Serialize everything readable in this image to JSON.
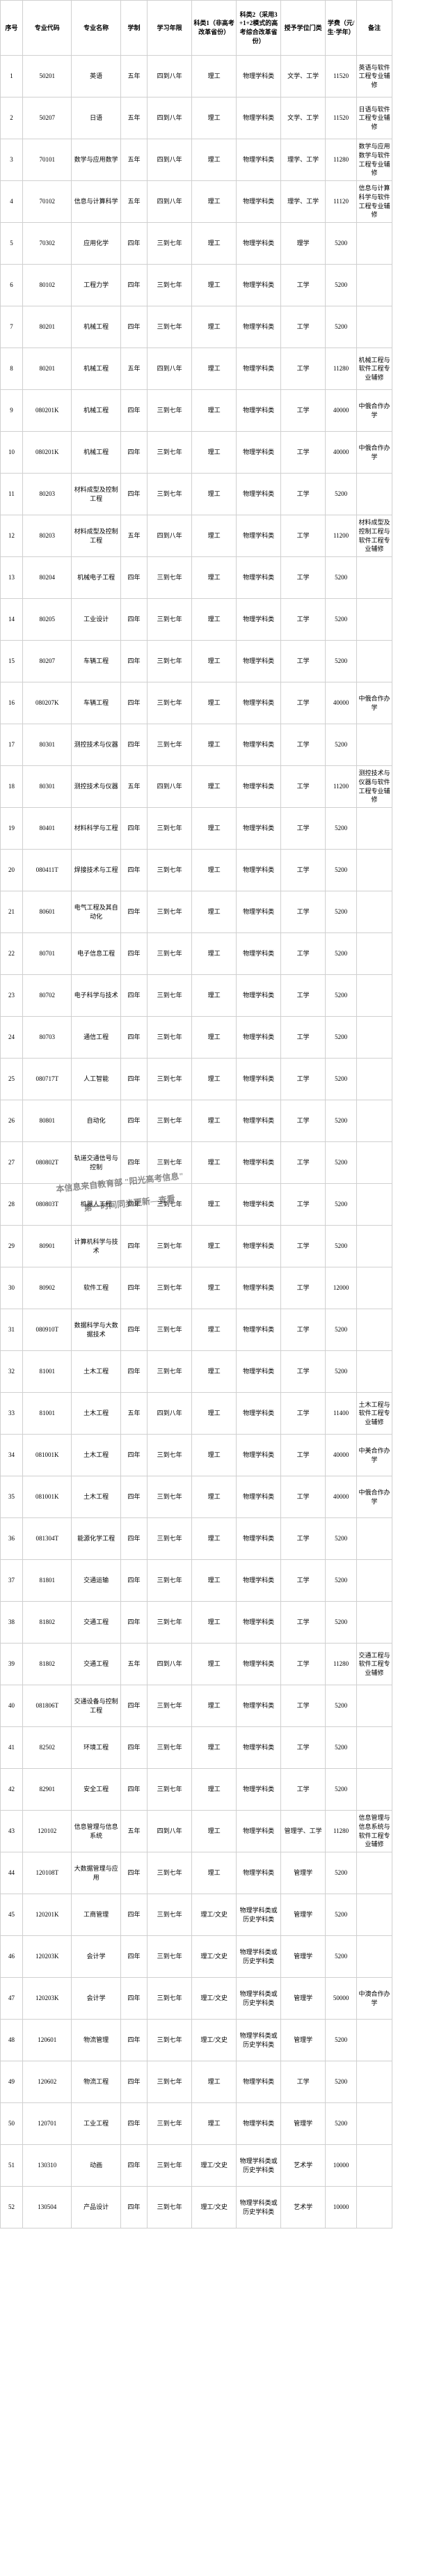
{
  "columns": [
    {
      "key": "idx",
      "label": "序号"
    },
    {
      "key": "code",
      "label": "专业代码"
    },
    {
      "key": "name",
      "label": "专业名称"
    },
    {
      "key": "sys",
      "label": "学制"
    },
    {
      "key": "years",
      "label": "学习年限"
    },
    {
      "key": "k1",
      "label": "科类1（非高考改革省份）"
    },
    {
      "key": "k2",
      "label": "科类2（采用3+1+2模式的高考综合改革省份）"
    },
    {
      "key": "degree",
      "label": "授予学位门类"
    },
    {
      "key": "fee",
      "label": "学费（元/生·学年）"
    },
    {
      "key": "note",
      "label": "备注"
    }
  ],
  "rows": [
    {
      "idx": "1",
      "code": "50201",
      "name": "英语",
      "sys": "五年",
      "years": "四到八年",
      "k1": "理工",
      "k2": "物理学科类",
      "degree": "文学、工学",
      "fee": "11520",
      "note": "英语与软件工程专业辅修"
    },
    {
      "idx": "2",
      "code": "50207",
      "name": "日语",
      "sys": "五年",
      "years": "四到八年",
      "k1": "理工",
      "k2": "物理学科类",
      "degree": "文学、工学",
      "fee": "11520",
      "note": "日语与软件工程专业辅修"
    },
    {
      "idx": "3",
      "code": "70101",
      "name": "数学与应用数学",
      "sys": "五年",
      "years": "四到八年",
      "k1": "理工",
      "k2": "物理学科类",
      "degree": "理学、工学",
      "fee": "11280",
      "note": "数学与应用数学与软件工程专业辅修"
    },
    {
      "idx": "4",
      "code": "70102",
      "name": "信息与计算科学",
      "sys": "五年",
      "years": "四到八年",
      "k1": "理工",
      "k2": "物理学科类",
      "degree": "理学、工学",
      "fee": "11120",
      "note": "信息与计算科学与软件工程专业辅修"
    },
    {
      "idx": "5",
      "code": "70302",
      "name": "应用化学",
      "sys": "四年",
      "years": "三到七年",
      "k1": "理工",
      "k2": "物理学科类",
      "degree": "理学",
      "fee": "5200",
      "note": ""
    },
    {
      "idx": "6",
      "code": "80102",
      "name": "工程力学",
      "sys": "四年",
      "years": "三到七年",
      "k1": "理工",
      "k2": "物理学科类",
      "degree": "工学",
      "fee": "5200",
      "note": ""
    },
    {
      "idx": "7",
      "code": "80201",
      "name": "机械工程",
      "sys": "四年",
      "years": "三到七年",
      "k1": "理工",
      "k2": "物理学科类",
      "degree": "工学",
      "fee": "5200",
      "note": ""
    },
    {
      "idx": "8",
      "code": "80201",
      "name": "机械工程",
      "sys": "五年",
      "years": "四到八年",
      "k1": "理工",
      "k2": "物理学科类",
      "degree": "工学",
      "fee": "11280",
      "note": "机械工程与软件工程专业辅修"
    },
    {
      "idx": "9",
      "code": "080201K",
      "name": "机械工程",
      "sys": "四年",
      "years": "三到七年",
      "k1": "理工",
      "k2": "物理学科类",
      "degree": "工学",
      "fee": "40000",
      "note": "中俄合作办学"
    },
    {
      "idx": "10",
      "code": "080201K",
      "name": "机械工程",
      "sys": "四年",
      "years": "三到七年",
      "k1": "理工",
      "k2": "物理学科类",
      "degree": "工学",
      "fee": "40000",
      "note": "中俄合作办学"
    },
    {
      "idx": "11",
      "code": "80203",
      "name": "材料成型及控制工程",
      "sys": "四年",
      "years": "三到七年",
      "k1": "理工",
      "k2": "物理学科类",
      "degree": "工学",
      "fee": "5200",
      "note": ""
    },
    {
      "idx": "12",
      "code": "80203",
      "name": "材料成型及控制工程",
      "sys": "五年",
      "years": "四到八年",
      "k1": "理工",
      "k2": "物理学科类",
      "degree": "工学",
      "fee": "11200",
      "note": "材料成型及控制工程与软件工程专业辅修"
    },
    {
      "idx": "13",
      "code": "80204",
      "name": "机械电子工程",
      "sys": "四年",
      "years": "三到七年",
      "k1": "理工",
      "k2": "物理学科类",
      "degree": "工学",
      "fee": "5200",
      "note": ""
    },
    {
      "idx": "14",
      "code": "80205",
      "name": "工业设计",
      "sys": "四年",
      "years": "三到七年",
      "k1": "理工",
      "k2": "物理学科类",
      "degree": "工学",
      "fee": "5200",
      "note": ""
    },
    {
      "idx": "15",
      "code": "80207",
      "name": "车辆工程",
      "sys": "四年",
      "years": "三到七年",
      "k1": "理工",
      "k2": "物理学科类",
      "degree": "工学",
      "fee": "5200",
      "note": ""
    },
    {
      "idx": "16",
      "code": "080207K",
      "name": "车辆工程",
      "sys": "四年",
      "years": "三到七年",
      "k1": "理工",
      "k2": "物理学科类",
      "degree": "工学",
      "fee": "40000",
      "note": "中俄合作办学"
    },
    {
      "idx": "17",
      "code": "80301",
      "name": "测控技术与仪器",
      "sys": "四年",
      "years": "三到七年",
      "k1": "理工",
      "k2": "物理学科类",
      "degree": "工学",
      "fee": "5200",
      "note": ""
    },
    {
      "idx": "18",
      "code": "80301",
      "name": "测控技术与仪器",
      "sys": "五年",
      "years": "四到八年",
      "k1": "理工",
      "k2": "物理学科类",
      "degree": "工学",
      "fee": "11200",
      "note": "测控技术与仪器与软件工程专业辅修"
    },
    {
      "idx": "19",
      "code": "80401",
      "name": "材料科学与工程",
      "sys": "四年",
      "years": "三到七年",
      "k1": "理工",
      "k2": "物理学科类",
      "degree": "工学",
      "fee": "5200",
      "note": ""
    },
    {
      "idx": "20",
      "code": "080411T",
      "name": "焊接技术与工程",
      "sys": "四年",
      "years": "三到七年",
      "k1": "理工",
      "k2": "物理学科类",
      "degree": "工学",
      "fee": "5200",
      "note": ""
    },
    {
      "idx": "21",
      "code": "80601",
      "name": "电气工程及其自动化",
      "sys": "四年",
      "years": "三到七年",
      "k1": "理工",
      "k2": "物理学科类",
      "degree": "工学",
      "fee": "5200",
      "note": ""
    },
    {
      "idx": "22",
      "code": "80701",
      "name": "电子信息工程",
      "sys": "四年",
      "years": "三到七年",
      "k1": "理工",
      "k2": "物理学科类",
      "degree": "工学",
      "fee": "5200",
      "note": ""
    },
    {
      "idx": "23",
      "code": "80702",
      "name": "电子科学与技术",
      "sys": "四年",
      "years": "三到七年",
      "k1": "理工",
      "k2": "物理学科类",
      "degree": "工学",
      "fee": "5200",
      "note": ""
    },
    {
      "idx": "24",
      "code": "80703",
      "name": "通信工程",
      "sys": "四年",
      "years": "三到七年",
      "k1": "理工",
      "k2": "物理学科类",
      "degree": "工学",
      "fee": "5200",
      "note": ""
    },
    {
      "idx": "25",
      "code": "080717T",
      "name": "人工智能",
      "sys": "四年",
      "years": "三到七年",
      "k1": "理工",
      "k2": "物理学科类",
      "degree": "工学",
      "fee": "5200",
      "note": ""
    },
    {
      "idx": "26",
      "code": "80801",
      "name": "自动化",
      "sys": "四年",
      "years": "三到七年",
      "k1": "理工",
      "k2": "物理学科类",
      "degree": "工学",
      "fee": "5200",
      "note": ""
    },
    {
      "idx": "27",
      "code": "080802T",
      "name": "轨道交通信号与控制",
      "sys": "四年",
      "years": "三到七年",
      "k1": "理工",
      "k2": "物理学科类",
      "degree": "工学",
      "fee": "5200",
      "note": ""
    },
    {
      "idx": "28",
      "code": "080803T",
      "name": "机器人工程",
      "sys": "四年",
      "years": "三到七年",
      "k1": "理工",
      "k2": "物理学科类",
      "degree": "工学",
      "fee": "5200",
      "note": ""
    },
    {
      "idx": "29",
      "code": "80901",
      "name": "计算机科学与技术",
      "sys": "四年",
      "years": "三到七年",
      "k1": "理工",
      "k2": "物理学科类",
      "degree": "工学",
      "fee": "5200",
      "note": ""
    },
    {
      "idx": "30",
      "code": "80902",
      "name": "软件工程",
      "sys": "四年",
      "years": "三到七年",
      "k1": "理工",
      "k2": "物理学科类",
      "degree": "工学",
      "fee": "12000",
      "note": ""
    },
    {
      "idx": "31",
      "code": "080910T",
      "name": "数据科学与大数据技术",
      "sys": "四年",
      "years": "三到七年",
      "k1": "理工",
      "k2": "物理学科类",
      "degree": "工学",
      "fee": "5200",
      "note": ""
    },
    {
      "idx": "32",
      "code": "81001",
      "name": "土木工程",
      "sys": "四年",
      "years": "三到七年",
      "k1": "理工",
      "k2": "物理学科类",
      "degree": "工学",
      "fee": "5200",
      "note": ""
    },
    {
      "idx": "33",
      "code": "81001",
      "name": "土木工程",
      "sys": "五年",
      "years": "四到八年",
      "k1": "理工",
      "k2": "物理学科类",
      "degree": "工学",
      "fee": "11400",
      "note": "土木工程与软件工程专业辅修"
    },
    {
      "idx": "34",
      "code": "081001K",
      "name": "土木工程",
      "sys": "四年",
      "years": "三到七年",
      "k1": "理工",
      "k2": "物理学科类",
      "degree": "工学",
      "fee": "40000",
      "note": "中美合作办学"
    },
    {
      "idx": "35",
      "code": "081001K",
      "name": "土木工程",
      "sys": "四年",
      "years": "三到七年",
      "k1": "理工",
      "k2": "物理学科类",
      "degree": "工学",
      "fee": "40000",
      "note": "中俄合作办学"
    },
    {
      "idx": "36",
      "code": "081304T",
      "name": "能源化学工程",
      "sys": "四年",
      "years": "三到七年",
      "k1": "理工",
      "k2": "物理学科类",
      "degree": "工学",
      "fee": "5200",
      "note": ""
    },
    {
      "idx": "37",
      "code": "81801",
      "name": "交通运输",
      "sys": "四年",
      "years": "三到七年",
      "k1": "理工",
      "k2": "物理学科类",
      "degree": "工学",
      "fee": "5200",
      "note": ""
    },
    {
      "idx": "38",
      "code": "81802",
      "name": "交通工程",
      "sys": "四年",
      "years": "三到七年",
      "k1": "理工",
      "k2": "物理学科类",
      "degree": "工学",
      "fee": "5200",
      "note": ""
    },
    {
      "idx": "39",
      "code": "81802",
      "name": "交通工程",
      "sys": "五年",
      "years": "四到八年",
      "k1": "理工",
      "k2": "物理学科类",
      "degree": "工学",
      "fee": "11280",
      "note": "交通工程与软件工程专业辅修"
    },
    {
      "idx": "40",
      "code": "081806T",
      "name": "交通设备与控制工程",
      "sys": "四年",
      "years": "三到七年",
      "k1": "理工",
      "k2": "物理学科类",
      "degree": "工学",
      "fee": "5200",
      "note": ""
    },
    {
      "idx": "41",
      "code": "82502",
      "name": "环境工程",
      "sys": "四年",
      "years": "三到七年",
      "k1": "理工",
      "k2": "物理学科类",
      "degree": "工学",
      "fee": "5200",
      "note": ""
    },
    {
      "idx": "42",
      "code": "82901",
      "name": "安全工程",
      "sys": "四年",
      "years": "三到七年",
      "k1": "理工",
      "k2": "物理学科类",
      "degree": "工学",
      "fee": "5200",
      "note": ""
    },
    {
      "idx": "43",
      "code": "120102",
      "name": "信息管理与信息系统",
      "sys": "五年",
      "years": "四到八年",
      "k1": "理工",
      "k2": "物理学科类",
      "degree": "管理学、工学",
      "fee": "11280",
      "note": "信息管理与信息系统与软件工程专业辅修"
    },
    {
      "idx": "44",
      "code": "120108T",
      "name": "大数据管理与应用",
      "sys": "四年",
      "years": "三到七年",
      "k1": "理工",
      "k2": "物理学科类",
      "degree": "管理学",
      "fee": "5200",
      "note": ""
    },
    {
      "idx": "45",
      "code": "120201K",
      "name": "工商管理",
      "sys": "四年",
      "years": "三到七年",
      "k1": "理工/文史",
      "k2": "物理学科类或历史学科类",
      "degree": "管理学",
      "fee": "5200",
      "note": ""
    },
    {
      "idx": "46",
      "code": "120203K",
      "name": "会计学",
      "sys": "四年",
      "years": "三到七年",
      "k1": "理工/文史",
      "k2": "物理学科类或历史学科类",
      "degree": "管理学",
      "fee": "5200",
      "note": ""
    },
    {
      "idx": "47",
      "code": "120203K",
      "name": "会计学",
      "sys": "四年",
      "years": "三到七年",
      "k1": "理工/文史",
      "k2": "物理学科类或历史学科类",
      "degree": "管理学",
      "fee": "50000",
      "note": "中澳合作办学"
    },
    {
      "idx": "48",
      "code": "120601",
      "name": "物流管理",
      "sys": "四年",
      "years": "三到七年",
      "k1": "理工/文史",
      "k2": "物理学科类或历史学科类",
      "degree": "管理学",
      "fee": "5200",
      "note": ""
    },
    {
      "idx": "49",
      "code": "120602",
      "name": "物流工程",
      "sys": "四年",
      "years": "三到七年",
      "k1": "理工",
      "k2": "物理学科类",
      "degree": "工学",
      "fee": "5200",
      "note": ""
    },
    {
      "idx": "50",
      "code": "120701",
      "name": "工业工程",
      "sys": "四年",
      "years": "三到七年",
      "k1": "理工",
      "k2": "物理学科类",
      "degree": "管理学",
      "fee": "5200",
      "note": ""
    },
    {
      "idx": "51",
      "code": "130310",
      "name": "动画",
      "sys": "四年",
      "years": "三到七年",
      "k1": "理工/文史",
      "k2": "物理学科类或历史学科类",
      "degree": "艺术学",
      "fee": "10000",
      "note": ""
    },
    {
      "idx": "52",
      "code": "130504",
      "name": "产品设计",
      "sys": "四年",
      "years": "三到七年",
      "k1": "理工/文史",
      "k2": "物理学科类或历史学科类",
      "degree": "艺术学",
      "fee": "10000",
      "note": ""
    }
  ],
  "watermark": {
    "lines": [
      "本信息来自教育部 \"阳光高考信息\"",
      "第一时间同步更新—查看"
    ]
  }
}
